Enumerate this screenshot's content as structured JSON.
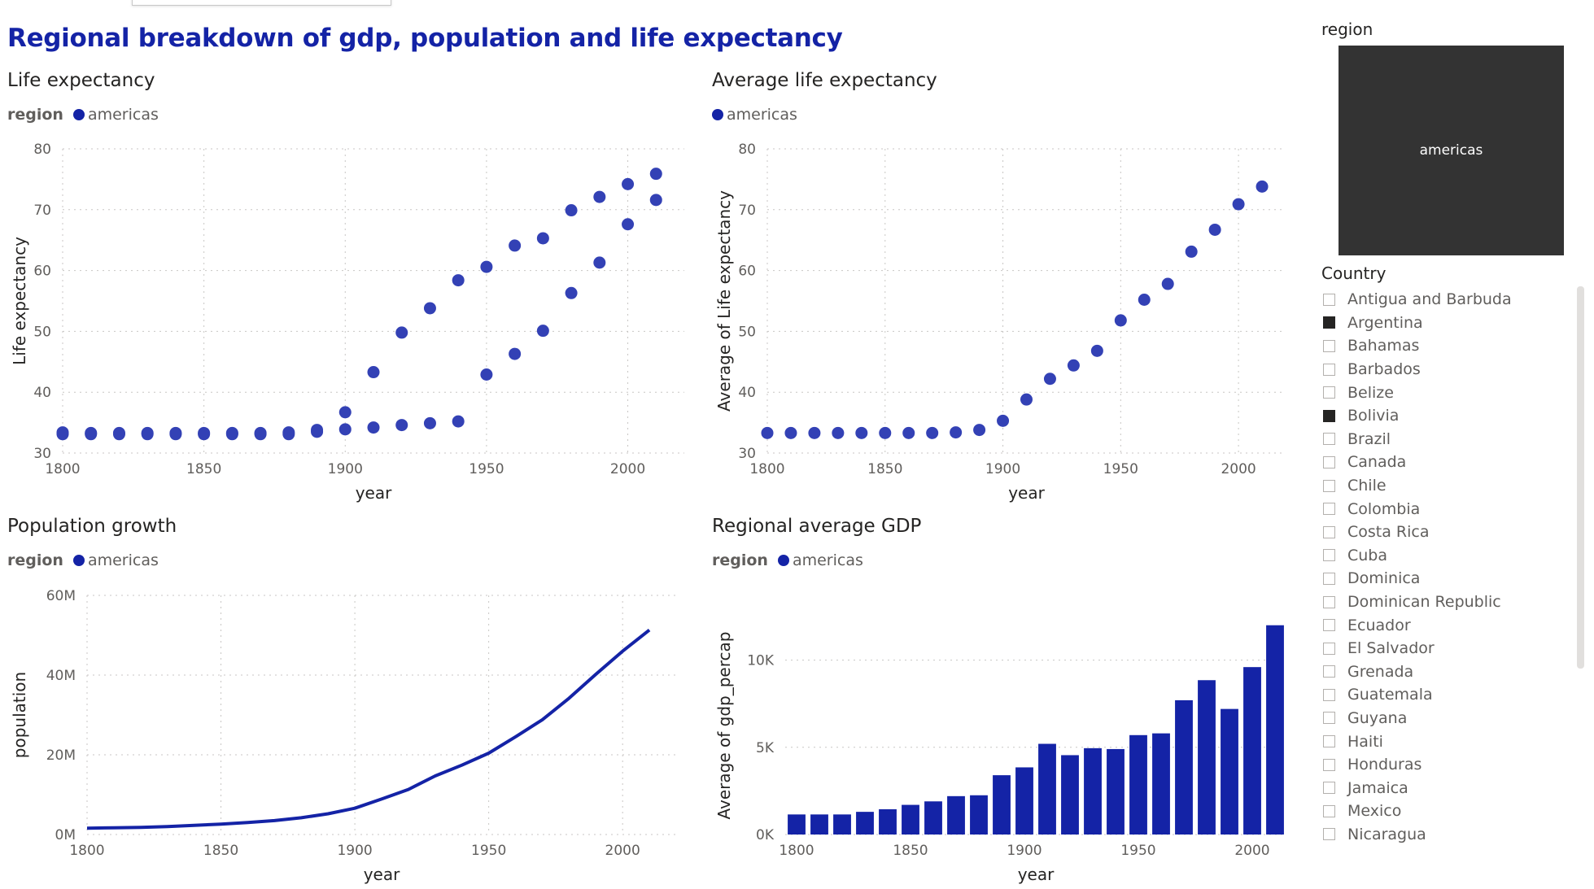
{
  "dashboard": {
    "title": "Regional breakdown of gdp, population and life expectancy"
  },
  "colors": {
    "accent": "#1423a6",
    "scatter": "#3341b5",
    "tile_bg": "#333333"
  },
  "slicer_region": {
    "header": "region",
    "options": [
      {
        "label": "americas",
        "selected": true
      }
    ]
  },
  "slicer_country": {
    "header": "Country",
    "items": [
      {
        "label": "Antigua and Barbuda",
        "checked": false
      },
      {
        "label": "Argentina",
        "checked": true
      },
      {
        "label": "Bahamas",
        "checked": false
      },
      {
        "label": "Barbados",
        "checked": false
      },
      {
        "label": "Belize",
        "checked": false
      },
      {
        "label": "Bolivia",
        "checked": true
      },
      {
        "label": "Brazil",
        "checked": false
      },
      {
        "label": "Canada",
        "checked": false
      },
      {
        "label": "Chile",
        "checked": false
      },
      {
        "label": "Colombia",
        "checked": false
      },
      {
        "label": "Costa Rica",
        "checked": false
      },
      {
        "label": "Cuba",
        "checked": false
      },
      {
        "label": "Dominica",
        "checked": false
      },
      {
        "label": "Dominican Republic",
        "checked": false
      },
      {
        "label": "Ecuador",
        "checked": false
      },
      {
        "label": "El Salvador",
        "checked": false
      },
      {
        "label": "Grenada",
        "checked": false
      },
      {
        "label": "Guatemala",
        "checked": false
      },
      {
        "label": "Guyana",
        "checked": false
      },
      {
        "label": "Haiti",
        "checked": false
      },
      {
        "label": "Honduras",
        "checked": false
      },
      {
        "label": "Jamaica",
        "checked": false
      },
      {
        "label": "Mexico",
        "checked": false
      },
      {
        "label": "Nicaragua",
        "checked": false
      }
    ]
  },
  "chart_data": [
    {
      "id": "life_expectancy",
      "type": "scatter",
      "title": "Life expectancy",
      "legend_title": "region",
      "legend": [
        "americas"
      ],
      "xlabel": "year",
      "ylabel": "Life expectancy",
      "xlim": [
        1800,
        2020
      ],
      "ylim": [
        30,
        80
      ],
      "xticks": [
        1800,
        1850,
        1900,
        1950,
        2000
      ],
      "yticks": [
        30,
        40,
        50,
        60,
        70,
        80
      ],
      "grid": true,
      "series": [
        {
          "name": "americas",
          "points": [
            [
              1800,
              33.1
            ],
            [
              1810,
              33.1
            ],
            [
              1820,
              33.1
            ],
            [
              1830,
              33.1
            ],
            [
              1840,
              33.1
            ],
            [
              1850,
              33.1
            ],
            [
              1860,
              33.1
            ],
            [
              1870,
              33.1
            ],
            [
              1880,
              33.1
            ],
            [
              1890,
              33.5
            ],
            [
              1800,
              33.4
            ],
            [
              1810,
              33.3
            ],
            [
              1820,
              33.3
            ],
            [
              1830,
              33.3
            ],
            [
              1840,
              33.3
            ],
            [
              1850,
              33.3
            ],
            [
              1860,
              33.3
            ],
            [
              1870,
              33.3
            ],
            [
              1880,
              33.4
            ],
            [
              1890,
              33.8
            ],
            [
              1900,
              36.7
            ],
            [
              1910,
              43.3
            ],
            [
              1920,
              49.8
            ],
            [
              1930,
              53.8
            ],
            [
              1940,
              58.4
            ],
            [
              1950,
              60.6
            ],
            [
              1960,
              64.1
            ],
            [
              1970,
              65.3
            ],
            [
              1980,
              69.9
            ],
            [
              1990,
              72.1
            ],
            [
              2000,
              74.2
            ],
            [
              2010,
              75.9
            ],
            [
              1900,
              33.9
            ],
            [
              1910,
              34.2
            ],
            [
              1920,
              34.6
            ],
            [
              1930,
              34.9
            ],
            [
              1940,
              35.2
            ],
            [
              1950,
              42.9
            ],
            [
              1960,
              46.3
            ],
            [
              1970,
              50.1
            ],
            [
              1980,
              56.3
            ],
            [
              1990,
              61.3
            ],
            [
              2000,
              67.6
            ],
            [
              2010,
              71.6
            ]
          ]
        }
      ]
    },
    {
      "id": "avg_life_expectancy",
      "type": "scatter",
      "title": "Average life expectancy",
      "legend": [
        "americas"
      ],
      "xlabel": "year",
      "ylabel": "Average of Life expectancy",
      "xlim": [
        1800,
        2020
      ],
      "ylim": [
        30,
        80
      ],
      "xticks": [
        1800,
        1850,
        1900,
        1950,
        2000
      ],
      "yticks": [
        30,
        40,
        50,
        60,
        70,
        80
      ],
      "grid": true,
      "series": [
        {
          "name": "americas",
          "points": [
            [
              1800,
              33.3
            ],
            [
              1810,
              33.3
            ],
            [
              1820,
              33.3
            ],
            [
              1830,
              33.3
            ],
            [
              1840,
              33.3
            ],
            [
              1850,
              33.3
            ],
            [
              1860,
              33.3
            ],
            [
              1870,
              33.3
            ],
            [
              1880,
              33.4
            ],
            [
              1890,
              33.8
            ],
            [
              1900,
              35.3
            ],
            [
              1910,
              38.8
            ],
            [
              1920,
              42.2
            ],
            [
              1930,
              44.4
            ],
            [
              1940,
              46.8
            ],
            [
              1950,
              51.8
            ],
            [
              1960,
              55.2
            ],
            [
              1970,
              57.8
            ],
            [
              1980,
              63.1
            ],
            [
              1990,
              66.7
            ],
            [
              2000,
              70.9
            ],
            [
              2010,
              73.8
            ]
          ]
        }
      ]
    },
    {
      "id": "population_growth",
      "type": "line",
      "title": "Population growth",
      "legend_title": "region",
      "legend": [
        "americas"
      ],
      "xlabel": "year",
      "ylabel": "population",
      "xlim": [
        1800,
        2020
      ],
      "ylim": [
        0,
        60000000
      ],
      "xticks": [
        1800,
        1850,
        1900,
        1950,
        2000
      ],
      "yticks": [
        0,
        20000000,
        40000000,
        60000000
      ],
      "ytick_labels": [
        "0M",
        "20M",
        "40M",
        "60M"
      ],
      "grid": true,
      "series": [
        {
          "name": "americas",
          "x": [
            1800,
            1810,
            1820,
            1830,
            1840,
            1850,
            1860,
            1870,
            1880,
            1890,
            1900,
            1910,
            1920,
            1930,
            1940,
            1950,
            1960,
            1970,
            1980,
            1990,
            2000,
            2010
          ],
          "y": [
            1600000,
            1700000,
            1800000,
            2000000,
            2300000,
            2600000,
            3000000,
            3500000,
            4200000,
            5200000,
            6600000,
            8900000,
            11300000,
            14700000,
            17400000,
            20400000,
            24500000,
            28800000,
            34200000,
            40200000,
            46000000,
            51300000
          ]
        }
      ]
    },
    {
      "id": "regional_avg_gdp",
      "type": "bar",
      "title": "Regional average GDP",
      "legend_title": "region",
      "legend": [
        "americas"
      ],
      "xlabel": "year",
      "ylabel": "Average of gdp_percap",
      "xlim": [
        1795,
        2015
      ],
      "ylim": [
        0,
        12500
      ],
      "xticks": [
        1800,
        1850,
        1900,
        1950,
        2000
      ],
      "yticks": [
        0,
        5000,
        10000
      ],
      "ytick_labels": [
        "0K",
        "5K",
        "10K"
      ],
      "grid": true,
      "series": [
        {
          "name": "americas",
          "x": [
            1800,
            1810,
            1820,
            1830,
            1840,
            1850,
            1860,
            1870,
            1880,
            1890,
            1900,
            1910,
            1920,
            1930,
            1940,
            1950,
            1960,
            1970,
            1980,
            1990,
            2000,
            2010
          ],
          "y": [
            1150,
            1150,
            1150,
            1300,
            1450,
            1700,
            1900,
            2200,
            2250,
            3400,
            3850,
            5200,
            4550,
            4950,
            4900,
            5700,
            5800,
            7700,
            8850,
            7200,
            9600,
            12000
          ]
        }
      ]
    }
  ]
}
